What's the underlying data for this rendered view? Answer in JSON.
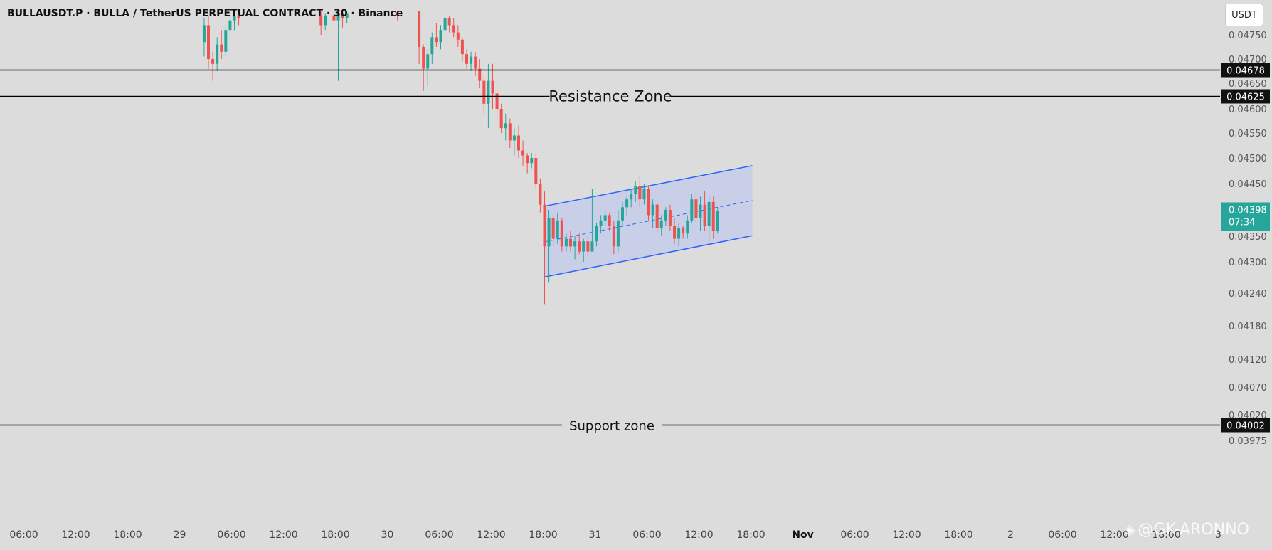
{
  "header": {
    "title": "BULLAUSDT.P · BULLA / TetherUS PERPETUAL CONTRACT · 30 · Binance",
    "currency": "USDT"
  },
  "watermark": {
    "text": "@GK-ARONNO",
    "icon": "diamond-logo-icon"
  },
  "colors": {
    "background": "#dcdcdc",
    "up": "#26a69a",
    "down": "#ef5350",
    "channel_line": "#2962ff",
    "channel_fill": "#c5cce8",
    "level_line": "#000000",
    "current_price": "#26a69a"
  },
  "chart_data": {
    "type": "candlestick",
    "interval": "30",
    "y_axis": {
      "tick_labels": [
        "0.04750",
        "0.04700",
        "0.04650",
        "0.04600",
        "0.04550",
        "0.04500",
        "0.04450",
        "0.04350",
        "0.04300",
        "0.04240",
        "0.04180",
        "0.04120",
        "0.04070",
        "0.04020",
        "0.03975"
      ],
      "tick_values": [
        0.0475,
        0.047,
        0.0465,
        0.046,
        0.0455,
        0.045,
        0.0445,
        0.0435,
        0.043,
        0.0424,
        0.0418,
        0.0412,
        0.0407,
        0.0402,
        0.03975
      ]
    },
    "x_axis": {
      "tick_labels": [
        "06:00",
        "12:00",
        "18:00",
        "29",
        "06:00",
        "12:00",
        "18:00",
        "30",
        "06:00",
        "12:00",
        "18:00",
        "31",
        "06:00",
        "12:00",
        "18:00",
        "Nov",
        "06:00",
        "12:00",
        "18:00",
        "2",
        "06:00",
        "12:00",
        "18:00",
        "3"
      ],
      "bold_labels": [
        "Nov"
      ]
    },
    "levels": [
      {
        "name": "resistance-upper",
        "price": 0.04678,
        "label": "",
        "tag": "0.04678"
      },
      {
        "name": "resistance-zone",
        "price": 0.04625,
        "label": "Resistance Zone",
        "tag": "0.04625"
      },
      {
        "name": "support-zone",
        "price": 0.04002,
        "label": "Support zone",
        "tag": "0.04002"
      }
    ],
    "current_price": {
      "value": 0.04398,
      "label": "0.04398",
      "countdown": "07:34"
    },
    "channel": {
      "type": "parallel-channel",
      "start_time": "30 18:00",
      "end_time": "31 18:00",
      "upper": [
        0.04407,
        0.04485
      ],
      "middle": [
        0.04339,
        0.04418
      ],
      "lower": [
        0.04271,
        0.04351
      ]
    },
    "candles": [
      {
        "t": "29 02:30",
        "o": 0.04735,
        "h": 0.04785,
        "l": 0.04705,
        "c": 0.0477
      },
      {
        "t": "29 03:00",
        "o": 0.0477,
        "h": 0.0479,
        "l": 0.0468,
        "c": 0.047
      },
      {
        "t": "29 03:30",
        "o": 0.047,
        "h": 0.04715,
        "l": 0.04655,
        "c": 0.0469
      },
      {
        "t": "29 04:00",
        "o": 0.0469,
        "h": 0.04745,
        "l": 0.04675,
        "c": 0.0473
      },
      {
        "t": "29 04:30",
        "o": 0.0473,
        "h": 0.0476,
        "l": 0.047,
        "c": 0.04715
      },
      {
        "t": "29 05:00",
        "o": 0.04715,
        "h": 0.0477,
        "l": 0.04705,
        "c": 0.0476
      },
      {
        "t": "29 05:30",
        "o": 0.0476,
        "h": 0.0479,
        "l": 0.04745,
        "c": 0.0478
      },
      {
        "t": "29 06:00",
        "o": 0.0478,
        "h": 0.048,
        "l": 0.0476,
        "c": 0.0479
      },
      {
        "t": "29 06:30",
        "o": 0.0479,
        "h": 0.048,
        "l": 0.0477,
        "c": 0.04785
      },
      {
        "t": "29 16:00",
        "o": 0.0479,
        "h": 0.048,
        "l": 0.0475,
        "c": 0.0477
      },
      {
        "t": "29 16:30",
        "o": 0.0477,
        "h": 0.04795,
        "l": 0.0476,
        "c": 0.0479
      },
      {
        "t": "29 17:30",
        "o": 0.0479,
        "h": 0.048,
        "l": 0.04765,
        "c": 0.0478
      },
      {
        "t": "29 18:00",
        "o": 0.0478,
        "h": 0.048,
        "l": 0.04655,
        "c": 0.04795
      },
      {
        "t": "29 18:30",
        "o": 0.04795,
        "h": 0.048,
        "l": 0.04765,
        "c": 0.04785
      },
      {
        "t": "29 19:00",
        "o": 0.04785,
        "h": 0.048,
        "l": 0.04775,
        "c": 0.04795
      },
      {
        "t": "30 01:00",
        "o": 0.04795,
        "h": 0.048,
        "l": 0.0478,
        "c": 0.0479
      },
      {
        "t": "30 03:30",
        "o": 0.048,
        "h": 0.048,
        "l": 0.0469,
        "c": 0.04725
      },
      {
        "t": "30 04:00",
        "o": 0.04725,
        "h": 0.0473,
        "l": 0.04635,
        "c": 0.0468
      },
      {
        "t": "30 04:30",
        "o": 0.0468,
        "h": 0.0472,
        "l": 0.04645,
        "c": 0.0471
      },
      {
        "t": "30 05:00",
        "o": 0.0471,
        "h": 0.04755,
        "l": 0.0469,
        "c": 0.04745
      },
      {
        "t": "30 05:30",
        "o": 0.04745,
        "h": 0.04775,
        "l": 0.04725,
        "c": 0.04735
      },
      {
        "t": "30 06:00",
        "o": 0.04735,
        "h": 0.0477,
        "l": 0.0472,
        "c": 0.0476
      },
      {
        "t": "30 06:30",
        "o": 0.0476,
        "h": 0.04795,
        "l": 0.0475,
        "c": 0.04785
      },
      {
        "t": "30 07:00",
        "o": 0.04785,
        "h": 0.0479,
        "l": 0.04755,
        "c": 0.0477
      },
      {
        "t": "30 07:30",
        "o": 0.0477,
        "h": 0.04785,
        "l": 0.04745,
        "c": 0.04755
      },
      {
        "t": "30 08:00",
        "o": 0.04755,
        "h": 0.0477,
        "l": 0.04725,
        "c": 0.0474
      },
      {
        "t": "30 08:30",
        "o": 0.0474,
        "h": 0.04745,
        "l": 0.04695,
        "c": 0.0471
      },
      {
        "t": "30 09:00",
        "o": 0.0471,
        "h": 0.0472,
        "l": 0.0468,
        "c": 0.0469
      },
      {
        "t": "30 09:30",
        "o": 0.0469,
        "h": 0.04715,
        "l": 0.04675,
        "c": 0.04705
      },
      {
        "t": "30 10:00",
        "o": 0.04705,
        "h": 0.04715,
        "l": 0.04665,
        "c": 0.0468
      },
      {
        "t": "30 10:30",
        "o": 0.0468,
        "h": 0.047,
        "l": 0.0464,
        "c": 0.04655
      },
      {
        "t": "30 11:00",
        "o": 0.04655,
        "h": 0.04665,
        "l": 0.0459,
        "c": 0.0461
      },
      {
        "t": "30 11:30",
        "o": 0.0461,
        "h": 0.0469,
        "l": 0.0456,
        "c": 0.04655
      },
      {
        "t": "30 12:00",
        "o": 0.04655,
        "h": 0.0469,
        "l": 0.046,
        "c": 0.0463
      },
      {
        "t": "30 12:30",
        "o": 0.0463,
        "h": 0.0465,
        "l": 0.0458,
        "c": 0.046
      },
      {
        "t": "30 13:00",
        "o": 0.046,
        "h": 0.0461,
        "l": 0.0455,
        "c": 0.0456
      },
      {
        "t": "30 13:30",
        "o": 0.0456,
        "h": 0.0459,
        "l": 0.04535,
        "c": 0.0457
      },
      {
        "t": "30 14:00",
        "o": 0.0457,
        "h": 0.0458,
        "l": 0.0452,
        "c": 0.04535
      },
      {
        "t": "30 14:30",
        "o": 0.04535,
        "h": 0.0456,
        "l": 0.04505,
        "c": 0.04545
      },
      {
        "t": "30 15:00",
        "o": 0.04545,
        "h": 0.04565,
        "l": 0.045,
        "c": 0.04515
      },
      {
        "t": "30 15:30",
        "o": 0.04515,
        "h": 0.04535,
        "l": 0.04485,
        "c": 0.04505
      },
      {
        "t": "30 16:00",
        "o": 0.04505,
        "h": 0.0451,
        "l": 0.0447,
        "c": 0.0449
      },
      {
        "t": "30 16:30",
        "o": 0.0449,
        "h": 0.0451,
        "l": 0.0448,
        "c": 0.045
      },
      {
        "t": "30 17:00",
        "o": 0.045,
        "h": 0.0451,
        "l": 0.0444,
        "c": 0.0445
      },
      {
        "t": "30 17:30",
        "o": 0.0445,
        "h": 0.0446,
        "l": 0.04395,
        "c": 0.0441
      },
      {
        "t": "30 18:00",
        "o": 0.0441,
        "h": 0.04435,
        "l": 0.0422,
        "c": 0.0433
      },
      {
        "t": "30 18:30",
        "o": 0.0433,
        "h": 0.044,
        "l": 0.0426,
        "c": 0.04385
      },
      {
        "t": "30 19:00",
        "o": 0.04385,
        "h": 0.0439,
        "l": 0.0433,
        "c": 0.04345
      },
      {
        "t": "30 19:30",
        "o": 0.04345,
        "h": 0.04395,
        "l": 0.04335,
        "c": 0.0438
      },
      {
        "t": "30 20:00",
        "o": 0.0438,
        "h": 0.04385,
        "l": 0.0432,
        "c": 0.0433
      },
      {
        "t": "30 20:30",
        "o": 0.0433,
        "h": 0.04355,
        "l": 0.0432,
        "c": 0.04345
      },
      {
        "t": "30 21:00",
        "o": 0.04345,
        "h": 0.0436,
        "l": 0.0432,
        "c": 0.0433
      },
      {
        "t": "30 21:30",
        "o": 0.0433,
        "h": 0.0435,
        "l": 0.04305,
        "c": 0.0434
      },
      {
        "t": "30 22:00",
        "o": 0.0434,
        "h": 0.04355,
        "l": 0.04315,
        "c": 0.0432
      },
      {
        "t": "30 22:30",
        "o": 0.0432,
        "h": 0.04345,
        "l": 0.043,
        "c": 0.0434
      },
      {
        "t": "30 23:00",
        "o": 0.0434,
        "h": 0.0435,
        "l": 0.0431,
        "c": 0.0432
      },
      {
        "t": "30 23:30",
        "o": 0.0432,
        "h": 0.0444,
        "l": 0.0432,
        "c": 0.0434
      },
      {
        "t": "31 00:00",
        "o": 0.0434,
        "h": 0.04375,
        "l": 0.0433,
        "c": 0.0437
      },
      {
        "t": "31 00:30",
        "o": 0.0437,
        "h": 0.0439,
        "l": 0.04355,
        "c": 0.0438
      },
      {
        "t": "31 01:00",
        "o": 0.0438,
        "h": 0.044,
        "l": 0.0437,
        "c": 0.0439
      },
      {
        "t": "31 01:30",
        "o": 0.0439,
        "h": 0.04395,
        "l": 0.0436,
        "c": 0.0437
      },
      {
        "t": "31 02:00",
        "o": 0.0437,
        "h": 0.0438,
        "l": 0.04315,
        "c": 0.0433
      },
      {
        "t": "31 02:30",
        "o": 0.0433,
        "h": 0.044,
        "l": 0.0432,
        "c": 0.0438
      },
      {
        "t": "31 03:00",
        "o": 0.0438,
        "h": 0.04415,
        "l": 0.0437,
        "c": 0.04405
      },
      {
        "t": "31 03:30",
        "o": 0.04405,
        "h": 0.04425,
        "l": 0.0439,
        "c": 0.0442
      },
      {
        "t": "31 04:00",
        "o": 0.0442,
        "h": 0.0444,
        "l": 0.04405,
        "c": 0.0443
      },
      {
        "t": "31 04:30",
        "o": 0.0443,
        "h": 0.04455,
        "l": 0.04415,
        "c": 0.04445
      },
      {
        "t": "31 05:00",
        "o": 0.04445,
        "h": 0.04465,
        "l": 0.04405,
        "c": 0.0442
      },
      {
        "t": "31 05:30",
        "o": 0.0442,
        "h": 0.0445,
        "l": 0.0441,
        "c": 0.0444
      },
      {
        "t": "31 06:00",
        "o": 0.0444,
        "h": 0.04445,
        "l": 0.0438,
        "c": 0.0439
      },
      {
        "t": "31 06:30",
        "o": 0.0439,
        "h": 0.0442,
        "l": 0.04365,
        "c": 0.0441
      },
      {
        "t": "31 07:00",
        "o": 0.0441,
        "h": 0.04415,
        "l": 0.04355,
        "c": 0.04365
      },
      {
        "t": "31 07:30",
        "o": 0.04365,
        "h": 0.0439,
        "l": 0.0435,
        "c": 0.0438
      },
      {
        "t": "31 08:00",
        "o": 0.0438,
        "h": 0.04405,
        "l": 0.0437,
        "c": 0.044
      },
      {
        "t": "31 08:30",
        "o": 0.044,
        "h": 0.0441,
        "l": 0.0436,
        "c": 0.0437
      },
      {
        "t": "31 09:00",
        "o": 0.0437,
        "h": 0.04385,
        "l": 0.04335,
        "c": 0.04345
      },
      {
        "t": "31 09:30",
        "o": 0.04345,
        "h": 0.04375,
        "l": 0.0433,
        "c": 0.04365
      },
      {
        "t": "31 10:00",
        "o": 0.04365,
        "h": 0.0437,
        "l": 0.04345,
        "c": 0.04355
      },
      {
        "t": "31 10:30",
        "o": 0.04355,
        "h": 0.0439,
        "l": 0.04345,
        "c": 0.0438
      },
      {
        "t": "31 11:00",
        "o": 0.0438,
        "h": 0.0443,
        "l": 0.04375,
        "c": 0.0442
      },
      {
        "t": "31 11:30",
        "o": 0.0442,
        "h": 0.04435,
        "l": 0.04375,
        "c": 0.04385
      },
      {
        "t": "31 12:00",
        "o": 0.04385,
        "h": 0.04425,
        "l": 0.0436,
        "c": 0.0441
      },
      {
        "t": "31 12:30",
        "o": 0.0441,
        "h": 0.04435,
        "l": 0.0436,
        "c": 0.0437
      },
      {
        "t": "31 13:00",
        "o": 0.0437,
        "h": 0.04425,
        "l": 0.0434,
        "c": 0.04415
      },
      {
        "t": "31 13:30",
        "o": 0.04415,
        "h": 0.04425,
        "l": 0.04345,
        "c": 0.0436
      },
      {
        "t": "31 14:00",
        "o": 0.0436,
        "h": 0.04405,
        "l": 0.04355,
        "c": 0.04398
      }
    ]
  }
}
